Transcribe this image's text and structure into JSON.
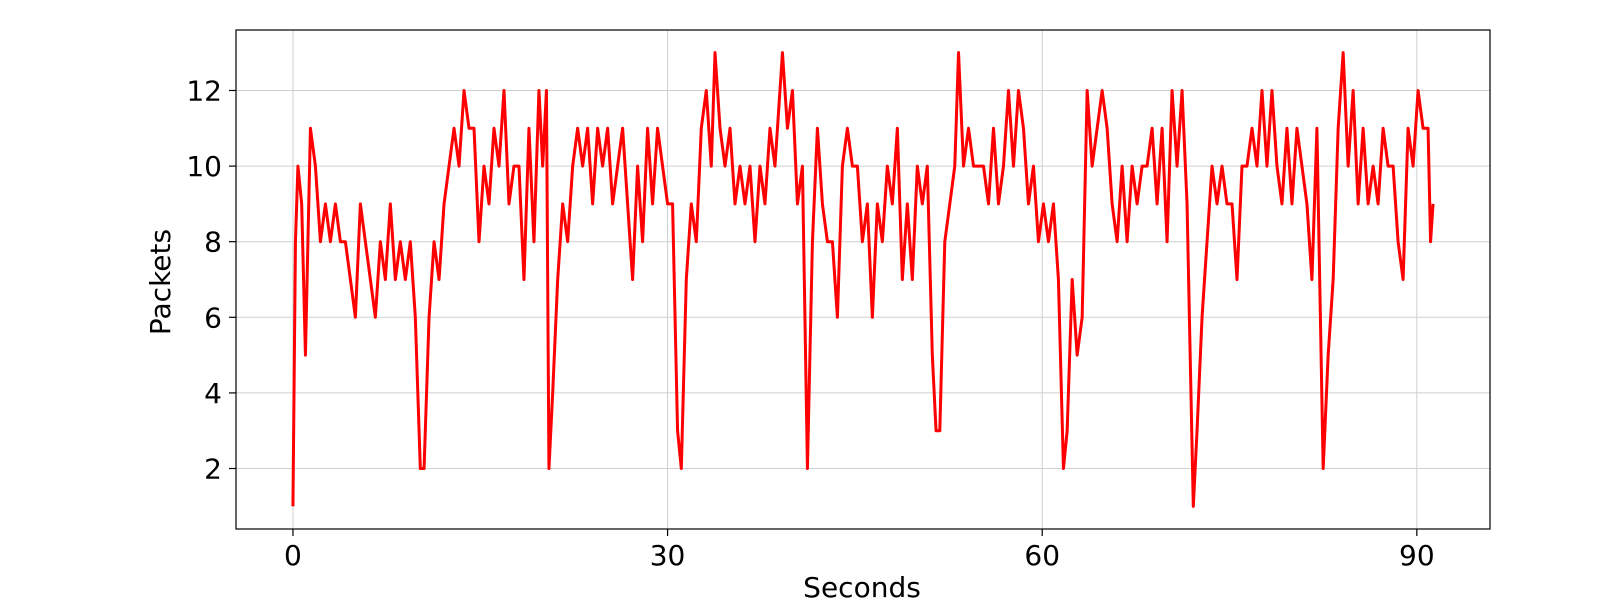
{
  "chart_data": {
    "type": "line",
    "xlabel": "Seconds",
    "ylabel": "Packets",
    "x": [
      0,
      0.2,
      0.4,
      0.7,
      1.0,
      1.4,
      1.8,
      2.2,
      2.6,
      3.0,
      3.4,
      3.8,
      4.2,
      4.6,
      5.0,
      5.4,
      5.8,
      6.2,
      6.6,
      7.0,
      7.4,
      7.8,
      8.2,
      8.6,
      9.0,
      9.4,
      9.8,
      10.2,
      10.5,
      10.9,
      11.3,
      11.7,
      12.1,
      12.5,
      12.9,
      13.3,
      13.7,
      14.1,
      14.5,
      14.9,
      15.3,
      15.7,
      16.1,
      16.5,
      16.9,
      17.3,
      17.7,
      18.1,
      18.5,
      18.9,
      19.3,
      19.7,
      20.0,
      20.3,
      20.5,
      20.8,
      21.2,
      21.6,
      22.0,
      22.4,
      22.8,
      23.2,
      23.6,
      24.0,
      24.4,
      24.8,
      25.2,
      25.6,
      26.0,
      26.4,
      26.8,
      27.2,
      27.6,
      28.0,
      28.4,
      28.8,
      29.2,
      29.6,
      30.0,
      30.4,
      30.8,
      31.1,
      31.5,
      31.9,
      32.3,
      32.7,
      33.1,
      33.5,
      33.8,
      34.2,
      34.6,
      35.0,
      35.4,
      35.8,
      36.2,
      36.6,
      37.0,
      37.4,
      37.8,
      38.2,
      38.6,
      39.0,
      39.2,
      39.6,
      40.0,
      40.4,
      40.8,
      41.2,
      41.6,
      42.0,
      42.4,
      42.8,
      43.2,
      43.6,
      44.0,
      44.4,
      44.8,
      45.2,
      45.6,
      46.0,
      46.4,
      46.8,
      47.2,
      47.6,
      48.0,
      48.4,
      48.8,
      49.2,
      49.6,
      50.0,
      50.4,
      50.8,
      51.2,
      51.5,
      51.8,
      52.2,
      52.6,
      53.0,
      53.3,
      53.7,
      54.1,
      54.5,
      54.9,
      55.3,
      55.7,
      56.1,
      56.5,
      56.9,
      57.3,
      57.7,
      58.1,
      58.5,
      58.9,
      59.3,
      59.7,
      60.1,
      60.5,
      60.9,
      61.3,
      61.7,
      62.0,
      62.4,
      62.8,
      63.2,
      63.6,
      64.0,
      64.4,
      64.8,
      65.2,
      65.6,
      66.0,
      66.4,
      66.8,
      67.2,
      67.6,
      68.0,
      68.4,
      68.8,
      69.2,
      69.6,
      70.0,
      70.4,
      70.8,
      71.2,
      71.6,
      72.1,
      72.4,
      72.8,
      73.2,
      73.6,
      74.0,
      74.4,
      74.8,
      75.2,
      75.6,
      76.0,
      76.4,
      76.8,
      77.2,
      77.6,
      78.0,
      78.4,
      78.8,
      79.2,
      79.6,
      80.0,
      80.4,
      80.8,
      81.2,
      81.6,
      82.0,
      82.5,
      82.9,
      83.3,
      83.7,
      84.1,
      84.5,
      84.9,
      85.3,
      85.7,
      86.1,
      86.5,
      86.9,
      87.3,
      87.7,
      88.1,
      88.5,
      88.9,
      89.3,
      89.7,
      90.1,
      90.5,
      90.9,
      91.1,
      91.3
    ],
    "series": [
      {
        "name": "Packets",
        "color": "#ff0000",
        "values": [
          1,
          8,
          10,
          9,
          5,
          11,
          10,
          8,
          9,
          8,
          9,
          8,
          8,
          7,
          6,
          9,
          8,
          7,
          6,
          8,
          7,
          9,
          7,
          8,
          7,
          8,
          6,
          2,
          2,
          6,
          8,
          7,
          9,
          10,
          11,
          10,
          12,
          11,
          11,
          8,
          10,
          9,
          11,
          10,
          12,
          9,
          10,
          10,
          7,
          11,
          8,
          12,
          10,
          12,
          2,
          4,
          7,
          9,
          8,
          10,
          11,
          10,
          11,
          9,
          11,
          10,
          11,
          9,
          10,
          11,
          9,
          7,
          10,
          8,
          11,
          9,
          11,
          10,
          9,
          9,
          3,
          2,
          7,
          9,
          8,
          11,
          12,
          10,
          13,
          11,
          10,
          11,
          9,
          10,
          9,
          10,
          8,
          10,
          9,
          11,
          10,
          12,
          13,
          11,
          12,
          9,
          10,
          2,
          8,
          11,
          9,
          8,
          8,
          6,
          10,
          11,
          10,
          10,
          8,
          9,
          6,
          9,
          8,
          10,
          9,
          11,
          7,
          9,
          7,
          10,
          9,
          10,
          5,
          3,
          3,
          8,
          9,
          10,
          13,
          10,
          11,
          10,
          10,
          10,
          9,
          11,
          9,
          10,
          12,
          10,
          12,
          11,
          9,
          10,
          8,
          9,
          8,
          9,
          7,
          2,
          3,
          7,
          5,
          6,
          12,
          10,
          11,
          12,
          11,
          9,
          8,
          10,
          8,
          10,
          9,
          10,
          10,
          11,
          9,
          11,
          8,
          12,
          10,
          12,
          9,
          1,
          3,
          6,
          8,
          10,
          9,
          10,
          9,
          9,
          7,
          10,
          10,
          11,
          10,
          12,
          10,
          12,
          10,
          9,
          11,
          9,
          11,
          10,
          9,
          7,
          11,
          2,
          5,
          7,
          11,
          13,
          10,
          12,
          9,
          11,
          9,
          10,
          9,
          11,
          10,
          10,
          8,
          7,
          11,
          10,
          12,
          11,
          11,
          8,
          9
        ]
      }
    ],
    "xlim": [
      -4.56,
      95.86
    ],
    "ylim": [
      0.4,
      13.6
    ],
    "xticks": [
      0,
      30,
      60,
      90
    ],
    "yticks": [
      2,
      4,
      6,
      8,
      10,
      12
    ],
    "grid": true
  }
}
